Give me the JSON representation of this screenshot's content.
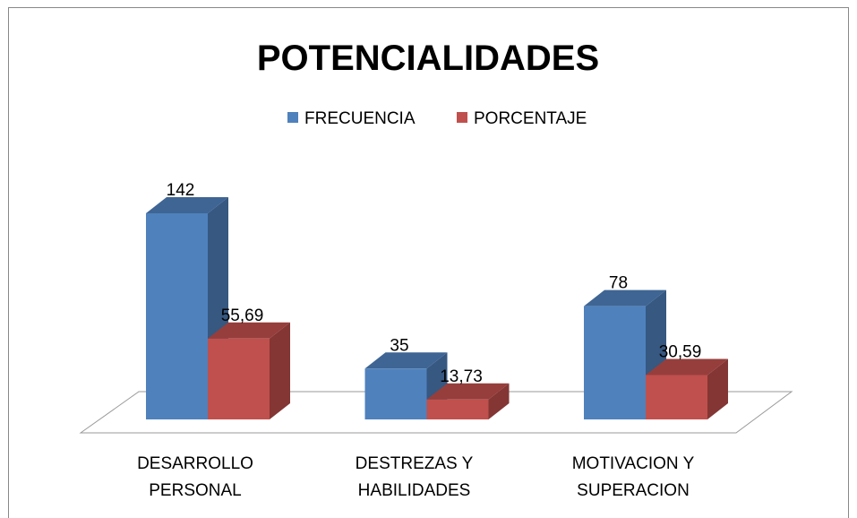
{
  "chart_data": {
    "type": "bar3d",
    "title": "POTENCIALIDADES",
    "categories": [
      "DESARROLLO\nPERSONAL",
      "DESTREZAS Y\nHABILIDADES",
      "MOTIVACION Y\nSUPERACION"
    ],
    "series": [
      {
        "name": "FRECUENCIA",
        "color": "#4f81bd",
        "values": [
          142,
          35,
          78
        ]
      },
      {
        "name": "PORCENTAJE",
        "color": "#c0504d",
        "values": [
          55.69,
          13.73,
          30.59
        ],
        "value_labels": [
          "55,69",
          "13,73",
          "30,59"
        ]
      }
    ],
    "legend": "top"
  }
}
